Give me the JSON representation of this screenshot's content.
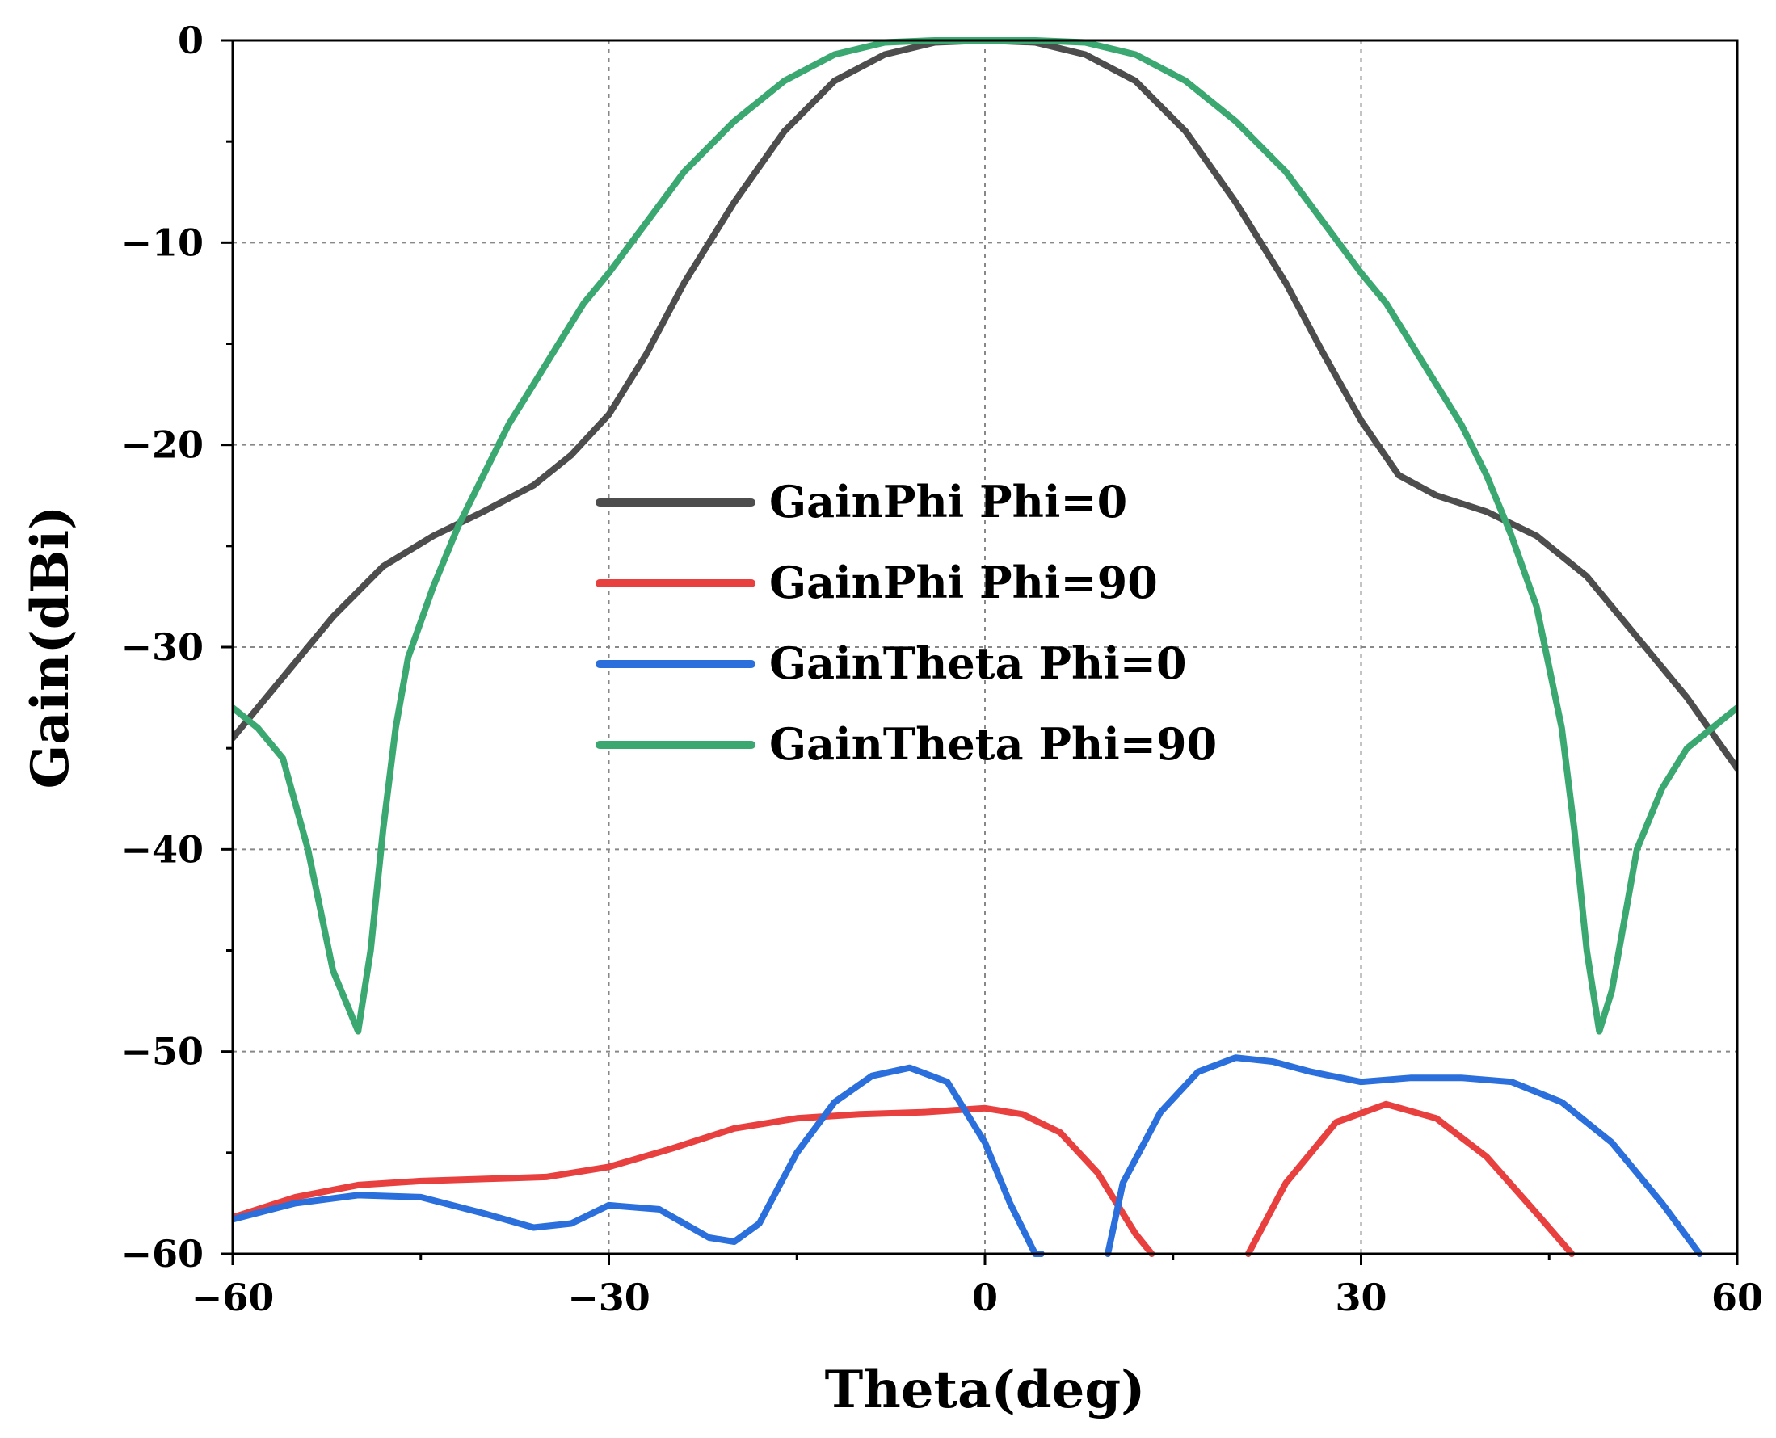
{
  "chart_data": {
    "type": "line",
    "title": "",
    "xlabel": "Theta(deg)",
    "ylabel": "Gain(dBi)",
    "xlim": [
      -60,
      60
    ],
    "ylim": [
      -60,
      0
    ],
    "xticks": [
      -60,
      -30,
      0,
      30,
      60
    ],
    "yticks": [
      0,
      -10,
      -20,
      -30,
      -40,
      -50,
      -60
    ],
    "xtick_labels": [
      "−60",
      "−30",
      "0",
      "30",
      "60"
    ],
    "ytick_labels": [
      "0",
      "−10",
      "−20",
      "−30",
      "−40",
      "−50",
      "−60"
    ],
    "grid": true,
    "legend_position": "center",
    "series": [
      {
        "name": "GainPhi Phi=0",
        "color": "#4d4d4d",
        "x": [
          -60,
          -56,
          -52,
          -48,
          -44,
          -40,
          -36,
          -33,
          -30,
          -27,
          -24,
          -20,
          -16,
          -12,
          -8,
          -4,
          0,
          4,
          8,
          12,
          16,
          20,
          24,
          27,
          30,
          33,
          36,
          40,
          44,
          48,
          52,
          56,
          60
        ],
        "y": [
          -34.5,
          -31.5,
          -28.5,
          -26,
          -24.5,
          -23.3,
          -22,
          -20.5,
          -18.5,
          -15.5,
          -12,
          -8,
          -4.5,
          -2,
          -0.7,
          -0.1,
          0,
          -0.1,
          -0.7,
          -2,
          -4.5,
          -8,
          -12,
          -15.5,
          -18.8,
          -21.5,
          -22.5,
          -23.3,
          -24.5,
          -26.5,
          -29.5,
          -32.5,
          -36
        ]
      },
      {
        "name": "GainPhi Phi=90",
        "color": "#e8403f",
        "x": [
          -60,
          -55,
          -50,
          -45,
          -40,
          -35,
          -30,
          -25,
          -20,
          -15,
          -10,
          -5,
          0,
          3,
          6,
          9,
          12,
          13.3,
          null,
          21,
          24,
          28,
          32,
          36,
          40,
          44,
          46.8
        ],
        "y": [
          -58.2,
          -57.2,
          -56.6,
          -56.4,
          -56.3,
          -56.2,
          -55.7,
          -54.8,
          -53.8,
          -53.3,
          -53.1,
          -53,
          -52.8,
          -53.1,
          -54,
          -56,
          -59,
          -60,
          null,
          -60,
          -56.5,
          -53.5,
          -52.6,
          -53.3,
          -55.2,
          -58,
          -60
        ]
      },
      {
        "name": "GainTheta Phi=0",
        "color": "#2a6fdb",
        "x": [
          -60,
          -55,
          -50,
          -45,
          -40,
          -36,
          -33,
          -30,
          -26,
          -22,
          -20,
          -18,
          -15,
          -12,
          -9,
          -6,
          -3,
          0,
          2,
          4,
          4.5,
          null,
          9.8,
          11,
          14,
          17,
          20,
          23,
          26,
          30,
          34,
          38,
          42,
          46,
          50,
          54,
          57
        ],
        "y": [
          -58.3,
          -57.5,
          -57.1,
          -57.2,
          -58,
          -58.7,
          -58.5,
          -57.6,
          -57.8,
          -59.2,
          -59.4,
          -58.5,
          -55,
          -52.5,
          -51.2,
          -50.8,
          -51.5,
          -54.5,
          -57.5,
          -60,
          -60,
          null,
          -60,
          -56.5,
          -53,
          -51,
          -50.3,
          -50.5,
          -51,
          -51.5,
          -51.3,
          -51.3,
          -51.5,
          -52.5,
          -54.5,
          -57.5,
          -60
        ]
      },
      {
        "name": "GainTheta Phi=90",
        "color": "#3aa870",
        "x": [
          -60,
          -58,
          -56,
          -54,
          -52,
          -50,
          -49,
          -48,
          -47,
          -46,
          -44,
          -42,
          -40,
          -38,
          -36,
          -34,
          -32,
          -30,
          -27,
          -24,
          -20,
          -16,
          -12,
          -8,
          -4,
          0,
          4,
          8,
          12,
          16,
          20,
          24,
          27,
          30,
          32,
          34,
          36,
          38,
          40,
          42,
          44,
          46,
          47,
          48,
          49,
          50,
          52,
          54,
          56,
          58,
          60
        ],
        "y": [
          -33,
          -34,
          -35.5,
          -40,
          -46,
          -49,
          -45,
          -39,
          -34,
          -30.5,
          -27,
          -24,
          -21.5,
          -19,
          -17,
          -15,
          -13,
          -11.5,
          -9,
          -6.5,
          -4,
          -2,
          -0.7,
          -0.1,
          0,
          0,
          0,
          -0.1,
          -0.7,
          -2,
          -4,
          -6.5,
          -9,
          -11.5,
          -13,
          -15,
          -17,
          -19,
          -21.5,
          -24.5,
          -28,
          -34,
          -39,
          -45,
          -49,
          -47,
          -40,
          -37,
          -35,
          -34,
          -33
        ]
      }
    ]
  }
}
